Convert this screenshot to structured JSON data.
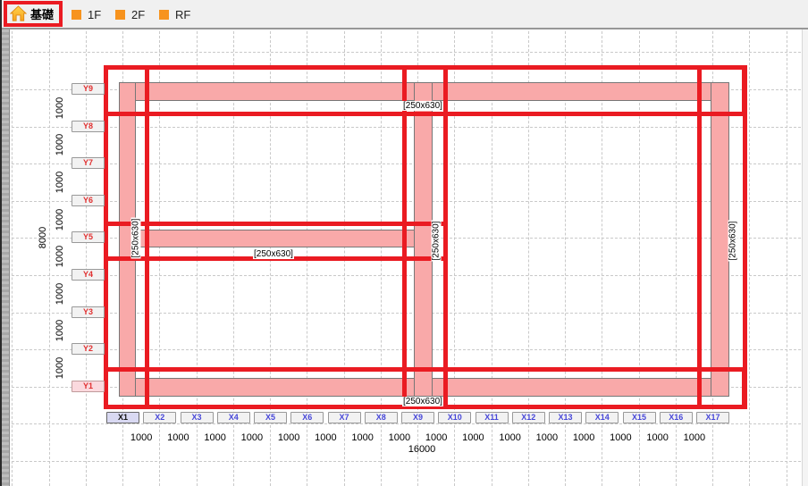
{
  "tabs": [
    {
      "label": "基礎",
      "icon": "home",
      "selected": true
    },
    {
      "label": "1F",
      "icon": "orange-square",
      "selected": false
    },
    {
      "label": "2F",
      "icon": "orange-square",
      "selected": false
    },
    {
      "label": "RF",
      "icon": "orange-square",
      "selected": false
    }
  ],
  "axes": {
    "y": {
      "labels": [
        "Y9",
        "Y8",
        "Y7",
        "Y6",
        "Y5",
        "Y4",
        "Y3",
        "Y2",
        "Y1"
      ],
      "selected": "Y1",
      "bay_label": "1000",
      "total_label": "8000"
    },
    "x": {
      "labels": [
        "X1",
        "X2",
        "X3",
        "X4",
        "X5",
        "X6",
        "X7",
        "X8",
        "X9",
        "X10",
        "X11",
        "X12",
        "X13",
        "X14",
        "X15",
        "X16",
        "X17"
      ],
      "selected": "X1",
      "bay_label": "1000",
      "total_label": "16000"
    }
  },
  "model": {
    "members": [
      {
        "id": "beam-y9",
        "axis": "Y9",
        "from": "X1",
        "to": "X17",
        "size": "[250x630]",
        "selected": true,
        "orientation": "h"
      },
      {
        "id": "beam-y5",
        "axis": "Y5",
        "from": "X1",
        "to": "X9",
        "size": "[250x630]",
        "selected": true,
        "orientation": "h"
      },
      {
        "id": "beam-y1",
        "axis": "Y1",
        "from": "X1",
        "to": "X17",
        "size": "[250x630]",
        "selected": true,
        "orientation": "h"
      },
      {
        "id": "girder-x1",
        "axis": "X1",
        "from": "Y1",
        "to": "Y9",
        "size": "[250x630]",
        "selected": true,
        "orientation": "v"
      },
      {
        "id": "girder-x9",
        "axis": "X9",
        "from": "Y1",
        "to": "Y9",
        "size": "[250x630]",
        "selected": true,
        "orientation": "v"
      },
      {
        "id": "girder-x17",
        "axis": "X17",
        "from": "Y1",
        "to": "Y9",
        "size": "[250x630]",
        "selected": true,
        "orientation": "v"
      }
    ]
  },
  "colors": {
    "selection_red": "#EA1B22",
    "beam_fill": "#F9A9A9",
    "beam_outline": "#777777",
    "x_axis_blue": "#4646D8",
    "y_axis_red": "#E03030",
    "tab_icon_orange": "#F7931E"
  }
}
